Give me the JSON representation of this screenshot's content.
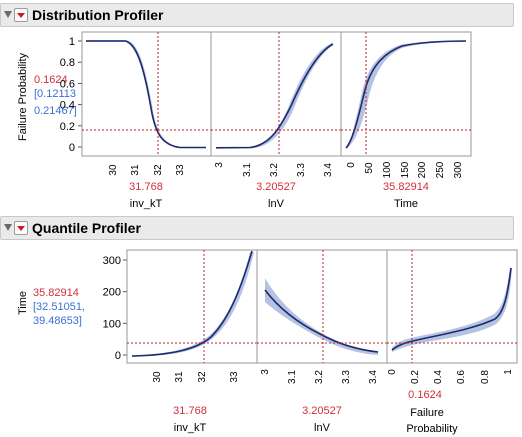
{
  "dist_header": {
    "title": "Distribution Profiler"
  },
  "quant_header": {
    "title": "Quantile Profiler"
  },
  "dist": {
    "y_axis_label": "Failure Probability",
    "current_value": "0.1624",
    "ci_line1": "[0.12113",
    "ci_line2": "0.21467]",
    "y_ticks": [
      "0",
      "0.2",
      "0.4",
      "0.6",
      "0.8",
      "1"
    ],
    "panels": [
      {
        "name": "inv_kT",
        "value": "31.768",
        "ticks": [
          "30",
          "31",
          "32",
          "33"
        ]
      },
      {
        "name": "lnV",
        "value": "3.20527",
        "ticks": [
          "3",
          "3.1",
          "3.2",
          "3.3",
          "3.4"
        ]
      },
      {
        "name": "Time",
        "value": "35.82914",
        "ticks": [
          "0",
          "50",
          "100",
          "150",
          "200",
          "250",
          "300"
        ]
      }
    ]
  },
  "quant": {
    "y_axis_label": "Time",
    "current_value": "35.82914",
    "ci_line1": "[32.51051,",
    "ci_line2": "39.48653]",
    "y_ticks": [
      "0",
      "100",
      "200",
      "300"
    ],
    "panels": [
      {
        "name": "inv_kT",
        "value": "31.768",
        "ticks": [
          "30",
          "31",
          "32",
          "33"
        ]
      },
      {
        "name": "lnV",
        "value": "3.20527",
        "ticks": [
          "3",
          "3.1",
          "3.2",
          "3.3",
          "3.4"
        ]
      },
      {
        "name": "Failure Probability",
        "name_line1": "Failure",
        "name_line2": "Probability",
        "value": "0.1624",
        "ticks": [
          "0",
          "0.2",
          "0.4",
          "0.6",
          "0.8",
          "1"
        ]
      }
    ]
  },
  "colors": {
    "curve": "#1f2a6e",
    "band": "#9fb0d8",
    "crosshair": "#c0202a",
    "value_text": "#d0303a",
    "ci_text": "#3a6fd8"
  }
}
